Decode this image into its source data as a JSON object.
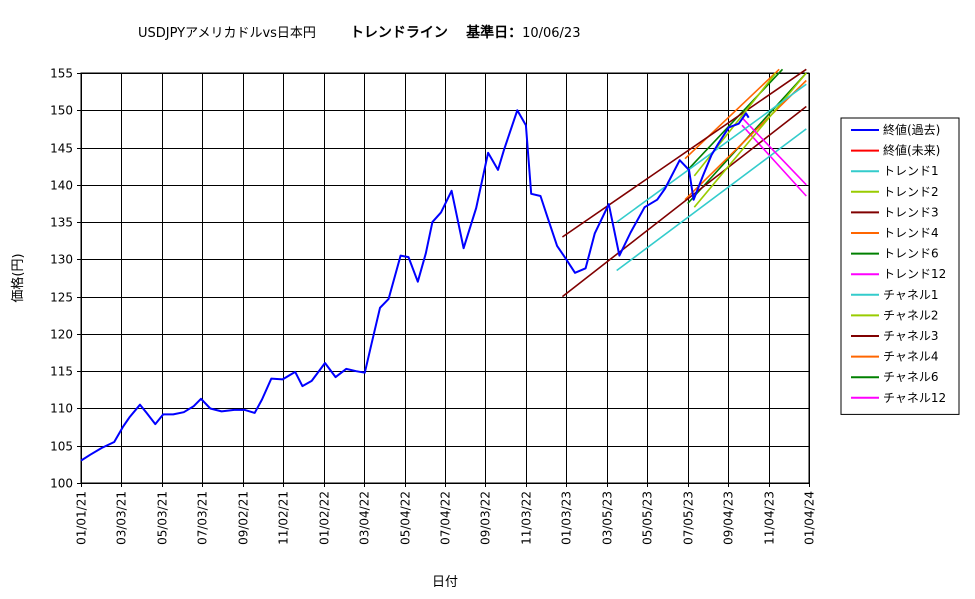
{
  "title": {
    "main": "USDJPYアメリカドルvs日本円",
    "trend": "トレンドライン",
    "base_label": "基準日：",
    "base_date": "10/06/23"
  },
  "chart_data": {
    "type": "line",
    "xlabel": "日付",
    "ylabel": "価格(円)",
    "ylim": [
      100,
      155
    ],
    "yticks": [
      100,
      105,
      110,
      115,
      120,
      125,
      130,
      135,
      140,
      145,
      150,
      155
    ],
    "xlim": [
      "2021-01-01",
      "2024-01-04"
    ],
    "xticks": [
      "01/01/21",
      "03/03/21",
      "05/03/21",
      "07/03/21",
      "09/02/21",
      "11/02/21",
      "01/02/22",
      "03/04/22",
      "05/04/22",
      "07/04/22",
      "09/03/22",
      "11/03/22",
      "01/03/23",
      "03/05/23",
      "05/05/23",
      "07/05/23",
      "09/04/23",
      "11/04/23",
      "01/04/24"
    ],
    "grid": true,
    "legend_position": "right",
    "series": [
      {
        "name": "終値(過去)",
        "color": "#0000ff",
        "values": [
          [
            "2021-01-01",
            103.0
          ],
          [
            "2021-01-15",
            103.8
          ],
          [
            "2021-02-01",
            104.7
          ],
          [
            "2021-02-20",
            105.5
          ],
          [
            "2021-03-05",
            107.5
          ],
          [
            "2021-03-15",
            108.8
          ],
          [
            "2021-03-31",
            110.5
          ],
          [
            "2021-04-10",
            109.4
          ],
          [
            "2021-04-23",
            107.9
          ],
          [
            "2021-05-05",
            109.2
          ],
          [
            "2021-05-20",
            109.2
          ],
          [
            "2021-06-05",
            109.5
          ],
          [
            "2021-06-20",
            110.3
          ],
          [
            "2021-07-01",
            111.3
          ],
          [
            "2021-07-15",
            110.0
          ],
          [
            "2021-08-01",
            109.6
          ],
          [
            "2021-08-20",
            109.8
          ],
          [
            "2021-09-05",
            109.8
          ],
          [
            "2021-09-20",
            109.4
          ],
          [
            "2021-10-01",
            111.2
          ],
          [
            "2021-10-15",
            114.0
          ],
          [
            "2021-11-01",
            113.9
          ],
          [
            "2021-11-20",
            114.9
          ],
          [
            "2021-12-01",
            113.0
          ],
          [
            "2021-12-15",
            113.7
          ],
          [
            "2022-01-04",
            116.1
          ],
          [
            "2022-01-20",
            114.2
          ],
          [
            "2022-02-05",
            115.3
          ],
          [
            "2022-02-20",
            115.0
          ],
          [
            "2022-03-05",
            114.8
          ],
          [
            "2022-03-15",
            118.6
          ],
          [
            "2022-03-28",
            123.5
          ],
          [
            "2022-04-10",
            124.7
          ],
          [
            "2022-04-28",
            130.5
          ],
          [
            "2022-05-10",
            130.3
          ],
          [
            "2022-05-24",
            127.0
          ],
          [
            "2022-06-05",
            130.8
          ],
          [
            "2022-06-15",
            135.0
          ],
          [
            "2022-06-28",
            136.3
          ],
          [
            "2022-07-14",
            139.2
          ],
          [
            "2022-08-01",
            131.5
          ],
          [
            "2022-08-20",
            136.9
          ],
          [
            "2022-09-07",
            144.3
          ],
          [
            "2022-09-22",
            142.0
          ],
          [
            "2022-10-01",
            144.7
          ],
          [
            "2022-10-21",
            150.0
          ],
          [
            "2022-11-03",
            148.0
          ],
          [
            "2022-11-11",
            138.8
          ],
          [
            "2022-11-25",
            138.5
          ],
          [
            "2022-12-05",
            135.8
          ],
          [
            "2022-12-20",
            131.8
          ],
          [
            "2023-01-03",
            130.0
          ],
          [
            "2023-01-16",
            128.2
          ],
          [
            "2023-02-01",
            128.8
          ],
          [
            "2023-02-15",
            133.5
          ],
          [
            "2023-03-08",
            137.4
          ],
          [
            "2023-03-24",
            130.5
          ],
          [
            "2023-04-10",
            133.6
          ],
          [
            "2023-05-01",
            137.0
          ],
          [
            "2023-05-20",
            138.0
          ],
          [
            "2023-06-01",
            139.5
          ],
          [
            "2023-06-23",
            143.3
          ],
          [
            "2023-07-07",
            142.0
          ],
          [
            "2023-07-14",
            138.0
          ],
          [
            "2023-07-28",
            141.2
          ],
          [
            "2023-08-10",
            144.0
          ],
          [
            "2023-08-20",
            145.5
          ],
          [
            "2023-09-05",
            147.7
          ],
          [
            "2023-09-20",
            148.2
          ],
          [
            "2023-10-01",
            149.6
          ],
          [
            "2023-10-05",
            149.0
          ]
        ]
      },
      {
        "name": "終値(未来)",
        "color": "#ff0000",
        "values": []
      },
      {
        "name": "トレンド1",
        "color": "#33cccc",
        "values": [
          [
            "2023-03-20",
            135.0
          ],
          [
            "2023-12-31",
            153.5
          ]
        ]
      },
      {
        "name": "トレンド2",
        "color": "#99cc00",
        "values": [
          [
            "2023-07-15",
            141.2
          ],
          [
            "2023-11-15",
            155.0
          ]
        ]
      },
      {
        "name": "トレンド3",
        "color": "#800000",
        "values": [
          [
            "2022-12-28",
            133.0
          ],
          [
            "2023-12-31",
            155.5
          ]
        ]
      },
      {
        "name": "トレンド4",
        "color": "#ff6600",
        "values": [
          [
            "2023-07-01",
            143.5
          ],
          [
            "2023-11-20",
            155.5
          ]
        ]
      },
      {
        "name": "トレンド6",
        "color": "#008000",
        "values": [
          [
            "2023-07-05",
            142.0
          ],
          [
            "2023-11-25",
            155.5
          ]
        ]
      },
      {
        "name": "トレンド12",
        "color": "#ff00ff",
        "values": [
          [
            "2023-09-25",
            149.0
          ],
          [
            "2023-12-31",
            140.0
          ]
        ]
      },
      {
        "name": "チャネル1",
        "color": "#33cccc",
        "values": [
          [
            "2023-03-20",
            128.5
          ],
          [
            "2023-12-31",
            147.5
          ]
        ]
      },
      {
        "name": "チャネル2",
        "color": "#99cc00",
        "values": [
          [
            "2023-07-15",
            137.0
          ],
          [
            "2023-12-31",
            155.0
          ]
        ]
      },
      {
        "name": "チャネル3",
        "color": "#800000",
        "values": [
          [
            "2022-12-28",
            125.0
          ],
          [
            "2023-12-31",
            150.5
          ]
        ]
      },
      {
        "name": "チャネル4",
        "color": "#ff6600",
        "values": [
          [
            "2023-07-01",
            138.0
          ],
          [
            "2023-12-31",
            154.0
          ]
        ]
      },
      {
        "name": "チャネル6",
        "color": "#008000",
        "values": [
          [
            "2023-07-05",
            137.5
          ],
          [
            "2023-12-31",
            155.0
          ]
        ]
      },
      {
        "name": "チャネル12",
        "color": "#ff00ff",
        "values": [
          [
            "2023-09-25",
            148.0
          ],
          [
            "2023-12-31",
            138.5
          ]
        ]
      }
    ]
  }
}
